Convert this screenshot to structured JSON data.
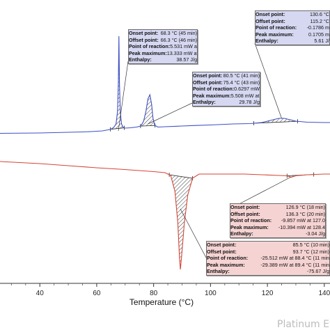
{
  "chart_data": {
    "type": "line",
    "xlabel": "Temperature (°C)",
    "x_ticks": [
      "40",
      "60",
      "80",
      "100",
      "120",
      "140"
    ],
    "xlim": [
      26,
      152
    ],
    "series": [
      {
        "color": "#3d4fc4",
        "curve": "heating",
        "points": [
          [
            26,
            191.5
          ],
          [
            40,
            191
          ],
          [
            50,
            190
          ],
          [
            55,
            189.5
          ],
          [
            58,
            189
          ],
          [
            62,
            188
          ],
          [
            64,
            186.5
          ],
          [
            65,
            185.5
          ],
          [
            66,
            183
          ],
          [
            66.8,
            178
          ],
          [
            67.3,
            160
          ],
          [
            67.6,
            120
          ],
          [
            67.8,
            52
          ],
          [
            68.0,
            120
          ],
          [
            68.3,
            160
          ],
          [
            68.7,
            178
          ],
          [
            69.3,
            183
          ],
          [
            70,
            184
          ],
          [
            72,
            183.5
          ],
          [
            74,
            182.5
          ],
          [
            75.5,
            181
          ],
          [
            76.5,
            174
          ],
          [
            77.3,
            160
          ],
          [
            78.0,
            142
          ],
          [
            78.7,
            136
          ],
          [
            79.3,
            150
          ],
          [
            79.8,
            170
          ],
          [
            80.4,
            180
          ],
          [
            81.5,
            182.5
          ],
          [
            84,
            182
          ],
          [
            90,
            181
          ],
          [
            95,
            180.2
          ],
          [
            100,
            179.5
          ],
          [
            108,
            178
          ],
          [
            114,
            177.5
          ],
          [
            118,
            176
          ],
          [
            121,
            173
          ],
          [
            124,
            170
          ],
          [
            126,
            170
          ],
          [
            128,
            172
          ],
          [
            130,
            174
          ],
          [
            134,
            175.5
          ],
          [
            140,
            176
          ],
          [
            146,
            176
          ],
          [
            152,
            176
          ]
        ]
      },
      {
        "color": "#d64534",
        "curve": "cooling",
        "points": [
          [
            26,
            232
          ],
          [
            40,
            235
          ],
          [
            50,
            238
          ],
          [
            60,
            241
          ],
          [
            68,
            243
          ],
          [
            75,
            245
          ],
          [
            80,
            246.5
          ],
          [
            84,
            248
          ],
          [
            86,
            252
          ],
          [
            87.5,
            275
          ],
          [
            88.5,
            320
          ],
          [
            89.1,
            370
          ],
          [
            89.4,
            387
          ],
          [
            89.8,
            370
          ],
          [
            90.8,
            320
          ],
          [
            92,
            280
          ],
          [
            93.7,
            256
          ],
          [
            96,
            250
          ],
          [
            100,
            250
          ],
          [
            108,
            250
          ],
          [
            112,
            250
          ],
          [
            118,
            251
          ],
          [
            124,
            252
          ],
          [
            126.9,
            252.5
          ],
          [
            128.4,
            254.5
          ],
          [
            130,
            252.5
          ],
          [
            134,
            251
          ],
          [
            140,
            250
          ],
          [
            146,
            250
          ],
          [
            152,
            250
          ]
        ]
      }
    ],
    "shaded_peaks": [
      {
        "curve": "heating",
        "from": 64.8,
        "to": 69.7
      },
      {
        "curve": "heating",
        "from": 75.4,
        "to": 80.5
      },
      {
        "curve": "heating",
        "from": 115.2,
        "to": 130.6
      },
      {
        "curve": "cooling",
        "from": 85.5,
        "to": 93.7
      },
      {
        "curve": "cooling",
        "from": 126.9,
        "to": 136.3
      }
    ],
    "grid": false
  },
  "annotations": [
    {
      "id": "peak-68",
      "style": "blue",
      "rows": [
        {
          "label": "Onset point:",
          "value": "68.3 °C (45 min)"
        },
        {
          "label": "Offset point:",
          "value": "66.3 °C (46 min)"
        },
        {
          "label": "Point of reaction:",
          "value": "5.531 mW at 68.1 °C (45 min)"
        },
        {
          "label": "Peak maximum:",
          "value": "13.333 mW at 67.8 °C (45 min)"
        },
        {
          "label": "Enthalpy:",
          "value": "38.57 J/g"
        }
      ]
    },
    {
      "id": "peak-79",
      "style": "blue",
      "rows": [
        {
          "label": "Onset point:",
          "value": "80.5 °C (41 min)"
        },
        {
          "label": "Offset point:",
          "value": "75.4 °C (43 min)"
        },
        {
          "label": "Point of reaction:",
          "value": "0.6297 mW at 80.0 °C (41 min)"
        },
        {
          "label": "Peak maximum:",
          "value": "5.508 mW at 78.7 °C (42 min)"
        },
        {
          "label": "Enthalpy:",
          "value": "29.78 J/g"
        }
      ]
    },
    {
      "id": "peak-125",
      "style": "blue",
      "rows": [
        {
          "label": "Onset point:",
          "value": "130.6 °C"
        },
        {
          "label": "Offset point:",
          "value": "115.2 °C"
        },
        {
          "label": "Point of reaction:",
          "value": "-0.1786 m"
        },
        {
          "label": "Peak maximum:",
          "value": "0.1705 m"
        },
        {
          "label": "Enthalpy:",
          "value": "5.61 J/"
        }
      ]
    },
    {
      "id": "peak-128",
      "style": "red",
      "rows": [
        {
          "label": "Onset point:",
          "value": "126.9 °C (18 min)"
        },
        {
          "label": "Offset point:",
          "value": "136.3 °C (20 min)"
        },
        {
          "label": "Point of reaction:",
          "value": "-9.857 mW at 127.0"
        },
        {
          "label": "Peak maximum:",
          "value": "-10.394 mW at 128.4"
        },
        {
          "label": "Enthalpy:",
          "value": "-3.04 J/g"
        }
      ]
    },
    {
      "id": "peak-89",
      "style": "red",
      "rows": [
        {
          "label": "Onset point:",
          "value": "85.5 °C (10 min)"
        },
        {
          "label": "Offset point:",
          "value": "93.7 °C (12 min)"
        },
        {
          "label": "Point of reaction:",
          "value": "-25.512 mW at 88.4 °C (11 min"
        },
        {
          "label": "Peak maximum:",
          "value": "-29.389 mW at 89.4 °C (11 min"
        },
        {
          "label": "Enthalpy:",
          "value": "-75.67 J/g"
        }
      ]
    }
  ],
  "watermark": "Platinum Eval"
}
